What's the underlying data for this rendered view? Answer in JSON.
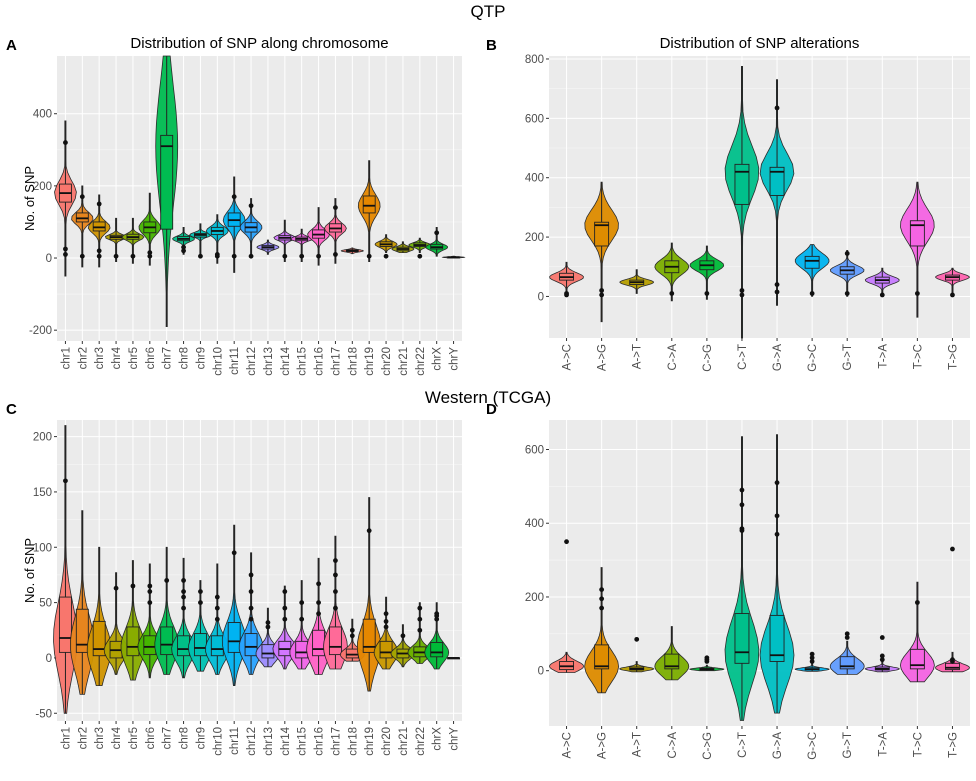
{
  "section_titles": {
    "top": "QTP",
    "bottom": "Western (TCGA)"
  },
  "colors": {
    "panel_bg": "#ebebeb",
    "grid_major": "#ffffff",
    "tick_text": "#4d4d4d",
    "chromosome_palette": [
      "#f8766d",
      "#e7851e",
      "#d09400",
      "#b2a100",
      "#89ac00",
      "#45b500",
      "#00bc51",
      "#00c087",
      "#00c0b2",
      "#00bcd6",
      "#00b3f2",
      "#29a3ff",
      "#9c8dff",
      "#d277ff",
      "#f166e8",
      "#ff61c7",
      "#ff6a98",
      "#f8766d",
      "#e58700",
      "#c99800",
      "#a3a500",
      "#6bb100",
      "#00ba38"
    ],
    "alteration_palette": [
      "#f8766d",
      "#de8c00",
      "#b79f00",
      "#7cae00",
      "#00ba38",
      "#00c08b",
      "#00bfc4",
      "#00b4f0",
      "#619cff",
      "#c77cff",
      "#f564e3",
      "#ff64b0"
    ]
  },
  "chart_data": [
    {
      "panel": "A",
      "type": "boxplot+violin",
      "title": "Distribution of SNP along chromosome",
      "xlabel": "",
      "ylabel": "No. of SNP",
      "ylim": [
        -230,
        560
      ],
      "yticks": [
        -200,
        0,
        200,
        400
      ],
      "categories": [
        "chr1",
        "chr2",
        "chr3",
        "chr4",
        "chr5",
        "chr6",
        "chr7",
        "chr8",
        "chr9",
        "chr10",
        "chr11",
        "chr12",
        "chr13",
        "chr14",
        "chr15",
        "chr16",
        "chr17",
        "chr18",
        "chr19",
        "chr20",
        "chr21",
        "chr22",
        "chrX",
        "chrY"
      ],
      "stats": [
        {
          "min": -50,
          "q1": 155,
          "med": 180,
          "q3": 205,
          "max": 380,
          "outliers": [
            320,
            25,
            10
          ]
        },
        {
          "min": -25,
          "q1": 100,
          "med": 110,
          "q3": 125,
          "max": 200,
          "outliers": [
            170,
            5
          ]
        },
        {
          "min": -25,
          "q1": 75,
          "med": 85,
          "q3": 100,
          "max": 175,
          "outliers": [
            150,
            20,
            5
          ]
        },
        {
          "min": -10,
          "q1": 52,
          "med": 58,
          "q3": 63,
          "max": 110,
          "outliers": [
            5
          ]
        },
        {
          "min": -15,
          "q1": 52,
          "med": 58,
          "q3": 66,
          "max": 110,
          "outliers": [
            5
          ]
        },
        {
          "min": -20,
          "q1": 70,
          "med": 85,
          "q3": 100,
          "max": 180,
          "outliers": [
            15,
            5
          ]
        },
        {
          "min": -190,
          "q1": 80,
          "med": 310,
          "q3": 340,
          "max": 560,
          "outliers": []
        },
        {
          "min": 10,
          "q1": 48,
          "med": 53,
          "q3": 60,
          "max": 85,
          "outliers": [
            30,
            20
          ]
        },
        {
          "min": 0,
          "q1": 58,
          "med": 64,
          "q3": 68,
          "max": 95,
          "outliers": [
            5
          ]
        },
        {
          "min": -15,
          "q1": 65,
          "med": 75,
          "q3": 85,
          "max": 120,
          "outliers": [
            10,
            5
          ]
        },
        {
          "min": -40,
          "q1": 88,
          "med": 105,
          "q3": 125,
          "max": 225,
          "outliers": [
            170,
            5
          ]
        },
        {
          "min": 0,
          "q1": 72,
          "med": 85,
          "q3": 98,
          "max": 165,
          "outliers": [
            145,
            5
          ]
        },
        {
          "min": 10,
          "q1": 25,
          "med": 30,
          "q3": 35,
          "max": 50,
          "outliers": []
        },
        {
          "min": -10,
          "q1": 50,
          "med": 56,
          "q3": 62,
          "max": 105,
          "outliers": [
            5
          ]
        },
        {
          "min": -10,
          "q1": 48,
          "med": 53,
          "q3": 58,
          "max": 80,
          "outliers": [
            5
          ]
        },
        {
          "min": -20,
          "q1": 55,
          "med": 65,
          "q3": 78,
          "max": 140,
          "outliers": [
            5
          ]
        },
        {
          "min": -15,
          "q1": 72,
          "med": 82,
          "q3": 95,
          "max": 165,
          "outliers": [
            140,
            10
          ]
        },
        {
          "min": 12,
          "q1": 18,
          "med": 20,
          "q3": 23,
          "max": 28,
          "outliers": []
        },
        {
          "min": -10,
          "q1": 125,
          "med": 145,
          "q3": 172,
          "max": 270,
          "outliers": [
            5
          ]
        },
        {
          "min": 15,
          "q1": 32,
          "med": 38,
          "q3": 45,
          "max": 65,
          "outliers": [
            5
          ]
        },
        {
          "min": 15,
          "q1": 20,
          "med": 25,
          "q3": 30,
          "max": 45,
          "outliers": []
        },
        {
          "min": 15,
          "q1": 32,
          "med": 36,
          "q3": 42,
          "max": 55,
          "outliers": [
            5
          ]
        },
        {
          "min": 5,
          "q1": 25,
          "med": 30,
          "q3": 38,
          "max": 85,
          "outliers": [
            70
          ]
        },
        {
          "min": 0,
          "q1": 1,
          "med": 2,
          "q3": 3,
          "max": 5,
          "outliers": []
        }
      ]
    },
    {
      "panel": "B",
      "type": "boxplot+violin",
      "title": "Distribution of SNP alterations",
      "xlabel": "",
      "ylabel": "",
      "ylim": [
        -140,
        810
      ],
      "yticks": [
        0,
        200,
        400,
        600,
        800
      ],
      "categories": [
        "A->C",
        "A->G",
        "A->T",
        "C->A",
        "C->G",
        "C->T",
        "G->A",
        "G->C",
        "G->T",
        "T->A",
        "T->C",
        "T->G"
      ],
      "stats": [
        {
          "min": 0,
          "q1": 55,
          "med": 65,
          "q3": 78,
          "max": 115,
          "outliers": [
            10,
            5
          ]
        },
        {
          "min": -85,
          "q1": 170,
          "med": 240,
          "q3": 250,
          "max": 385,
          "outliers": [
            20,
            5
          ]
        },
        {
          "min": 10,
          "q1": 40,
          "med": 48,
          "q3": 55,
          "max": 90,
          "outliers": []
        },
        {
          "min": -15,
          "q1": 80,
          "med": 100,
          "q3": 120,
          "max": 180,
          "outliers": [
            10
          ]
        },
        {
          "min": -10,
          "q1": 90,
          "med": 105,
          "q3": 120,
          "max": 170,
          "outliers": [
            10
          ]
        },
        {
          "min": -140,
          "q1": 310,
          "med": 420,
          "q3": 445,
          "max": 775,
          "outliers": [
            20,
            5
          ]
        },
        {
          "min": -30,
          "q1": 340,
          "med": 420,
          "q3": 435,
          "max": 730,
          "outliers": [
            635,
            40,
            15
          ]
        },
        {
          "min": 0,
          "q1": 95,
          "med": 120,
          "q3": 135,
          "max": 175,
          "outliers": [
            10
          ]
        },
        {
          "min": 0,
          "q1": 75,
          "med": 88,
          "q3": 100,
          "max": 155,
          "outliers": [
            145,
            10
          ]
        },
        {
          "min": 10,
          "q1": 45,
          "med": 55,
          "q3": 65,
          "max": 95,
          "outliers": [
            5
          ]
        },
        {
          "min": -70,
          "q1": 170,
          "med": 240,
          "q3": 255,
          "max": 385,
          "outliers": [
            10
          ]
        },
        {
          "min": 0,
          "q1": 55,
          "med": 65,
          "q3": 72,
          "max": 95,
          "outliers": [
            5
          ]
        }
      ]
    },
    {
      "panel": "C",
      "type": "boxplot+violin",
      "title": "",
      "xlabel": "",
      "ylabel": "No. of SNP",
      "ylim": [
        -57,
        215
      ],
      "yticks": [
        -50,
        0,
        50,
        100,
        150,
        200
      ],
      "categories": [
        "chr1",
        "chr2",
        "chr3",
        "chr4",
        "chr5",
        "chr6",
        "chr7",
        "chr8",
        "chr9",
        "chr10",
        "chr11",
        "chr12",
        "chr13",
        "chr14",
        "chr15",
        "chr16",
        "chr17",
        "chr18",
        "chr19",
        "chr20",
        "chr21",
        "chr22",
        "chrX",
        "chrY"
      ],
      "stats": [
        {
          "min": -50,
          "q1": 5,
          "med": 18,
          "q3": 55,
          "max": 210,
          "outliers": [
            160
          ]
        },
        {
          "min": -33,
          "q1": 5,
          "med": 12,
          "q3": 44,
          "max": 133,
          "outliers": []
        },
        {
          "min": -25,
          "q1": 2,
          "med": 8,
          "q3": 33,
          "max": 100,
          "outliers": []
        },
        {
          "min": -15,
          "q1": 0,
          "med": 7,
          "q3": 15,
          "max": 77,
          "outliers": [
            63
          ]
        },
        {
          "min": -20,
          "q1": 2,
          "med": 10,
          "q3": 28,
          "max": 88,
          "outliers": [
            65
          ]
        },
        {
          "min": -18,
          "q1": 3,
          "med": 10,
          "q3": 20,
          "max": 85,
          "outliers": [
            65,
            60,
            50
          ]
        },
        {
          "min": -15,
          "q1": 3,
          "med": 12,
          "q3": 28,
          "max": 100,
          "outliers": [
            70
          ]
        },
        {
          "min": -18,
          "q1": 2,
          "med": 8,
          "q3": 20,
          "max": 90,
          "outliers": [
            70,
            60,
            55,
            45
          ]
        },
        {
          "min": -12,
          "q1": 2,
          "med": 9,
          "q3": 22,
          "max": 70,
          "outliers": [
            60,
            50
          ]
        },
        {
          "min": -15,
          "q1": 2,
          "med": 8,
          "q3": 20,
          "max": 85,
          "outliers": [
            55,
            45,
            35
          ]
        },
        {
          "min": -25,
          "q1": 5,
          "med": 15,
          "q3": 32,
          "max": 120,
          "outliers": [
            95
          ]
        },
        {
          "min": -15,
          "q1": 2,
          "med": 10,
          "q3": 22,
          "max": 95,
          "outliers": [
            75,
            60,
            45,
            35
          ]
        },
        {
          "min": -8,
          "q1": 0,
          "med": 4,
          "q3": 12,
          "max": 45,
          "outliers": [
            32,
            28
          ]
        },
        {
          "min": -10,
          "q1": 2,
          "med": 8,
          "q3": 15,
          "max": 65,
          "outliers": [
            60,
            45,
            35
          ]
        },
        {
          "min": -10,
          "q1": 0,
          "med": 5,
          "q3": 15,
          "max": 70,
          "outliers": [
            50,
            35
          ]
        },
        {
          "min": -15,
          "q1": 2,
          "med": 8,
          "q3": 25,
          "max": 90,
          "outliers": [
            67,
            50,
            40
          ]
        },
        {
          "min": -10,
          "q1": 3,
          "med": 10,
          "q3": 28,
          "max": 110,
          "outliers": [
            88,
            75,
            60,
            45
          ]
        },
        {
          "min": -3,
          "q1": 0,
          "med": 3,
          "q3": 8,
          "max": 35,
          "outliers": [
            25,
            20
          ]
        },
        {
          "min": -30,
          "q1": 5,
          "med": 10,
          "q3": 35,
          "max": 145,
          "outliers": [
            115
          ]
        },
        {
          "min": -10,
          "q1": 0,
          "med": 5,
          "q3": 15,
          "max": 55,
          "outliers": [
            40,
            33,
            28
          ]
        },
        {
          "min": -8,
          "q1": 0,
          "med": 4,
          "q3": 8,
          "max": 30,
          "outliers": [
            20
          ]
        },
        {
          "min": -5,
          "q1": 1,
          "med": 5,
          "q3": 10,
          "max": 50,
          "outliers": [
            45,
            35,
            25
          ]
        },
        {
          "min": -10,
          "q1": 1,
          "med": 5,
          "q3": 14,
          "max": 50,
          "outliers": [
            40,
            38,
            35
          ]
        },
        {
          "min": 0,
          "q1": 0,
          "med": 0,
          "q3": 0,
          "max": 0,
          "outliers": []
        }
      ]
    },
    {
      "panel": "D",
      "type": "boxplot+violin",
      "title": "",
      "xlabel": "",
      "ylabel": "",
      "ylim": [
        -150,
        680
      ],
      "yticks": [
        0,
        200,
        400,
        600
      ],
      "categories": [
        "A->C",
        "A->G",
        "A->T",
        "C->A",
        "C->G",
        "C->T",
        "G->A",
        "G->C",
        "G->T",
        "T->A",
        "T->C",
        "T->G"
      ],
      "stats": [
        {
          "min": -5,
          "q1": 3,
          "med": 12,
          "q3": 25,
          "max": 50,
          "outliers": [
            350
          ]
        },
        {
          "min": -60,
          "q1": 5,
          "med": 12,
          "q3": 70,
          "max": 280,
          "outliers": [
            220,
            195,
            170
          ]
        },
        {
          "min": -3,
          "q1": 2,
          "med": 5,
          "q3": 10,
          "max": 25,
          "outliers": [
            85
          ]
        },
        {
          "min": -25,
          "q1": 5,
          "med": 12,
          "q3": 45,
          "max": 120,
          "outliers": []
        },
        {
          "min": 0,
          "q1": 2,
          "med": 4,
          "q3": 7,
          "max": 15,
          "outliers": [
            35,
            30,
            25
          ]
        },
        {
          "min": -135,
          "q1": 20,
          "med": 50,
          "q3": 155,
          "max": 635,
          "outliers": [
            490,
            450,
            385,
            380
          ]
        },
        {
          "min": -115,
          "q1": 25,
          "med": 42,
          "q3": 150,
          "max": 640,
          "outliers": [
            510,
            420,
            370
          ]
        },
        {
          "min": -2,
          "q1": 2,
          "med": 4,
          "q3": 8,
          "max": 20,
          "outliers": [
            45,
            35,
            25
          ]
        },
        {
          "min": -10,
          "q1": 5,
          "med": 12,
          "q3": 38,
          "max": 80,
          "outliers": [
            100,
            90
          ]
        },
        {
          "min": -3,
          "q1": 2,
          "med": 5,
          "q3": 10,
          "max": 25,
          "outliers": [
            90,
            40,
            30
          ]
        },
        {
          "min": -30,
          "q1": 5,
          "med": 15,
          "q3": 58,
          "max": 240,
          "outliers": [
            185
          ]
        },
        {
          "min": -3,
          "q1": 3,
          "med": 8,
          "q3": 20,
          "max": 50,
          "outliers": [
            330,
            30,
            25
          ]
        }
      ]
    }
  ]
}
